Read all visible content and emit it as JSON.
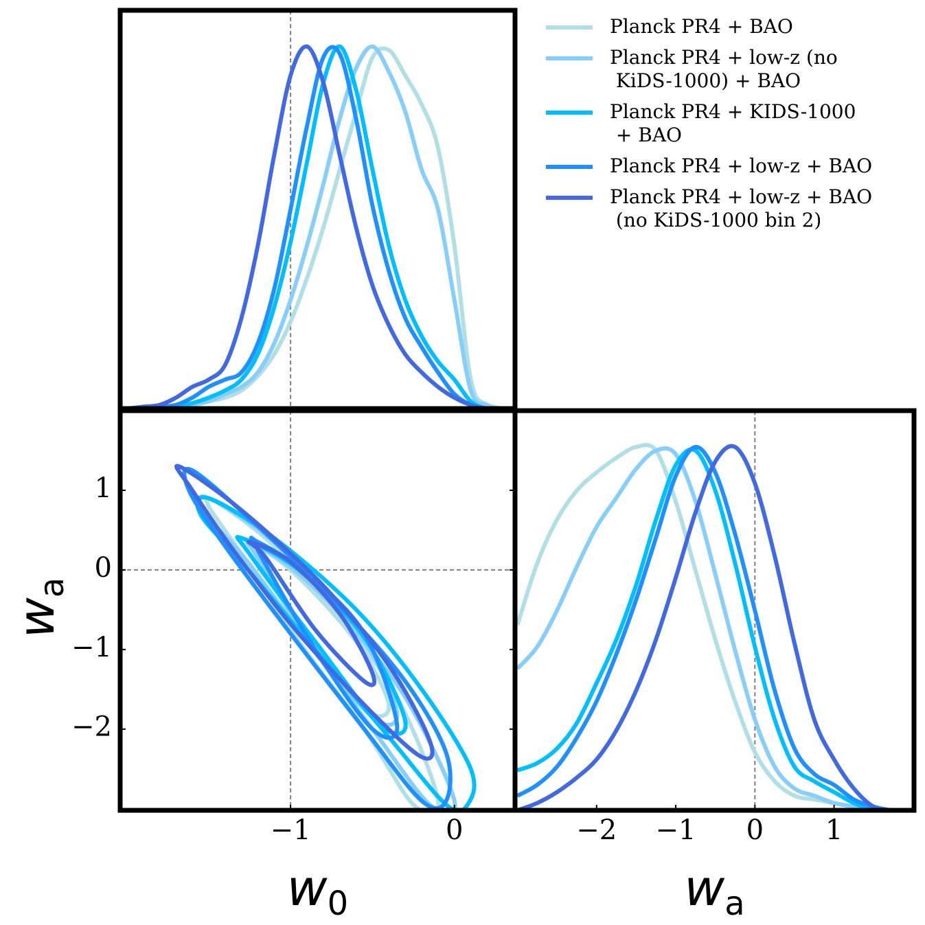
{
  "chart_data": [
    {
      "type": "line",
      "xlim": [
        -2.04,
        0.37
      ],
      "ylim": [
        0,
        1.1
      ],
      "xref": -1,
      "x": [
        -2.0,
        -1.9,
        -1.8,
        -1.7,
        -1.6,
        -1.5,
        -1.4,
        -1.3,
        -1.2,
        -1.1,
        -1.0,
        -0.9,
        -0.8,
        -0.7,
        -0.6,
        -0.5,
        -0.4,
        -0.3,
        -0.2,
        -0.1,
        0.0,
        0.1,
        0.2,
        0.3
      ],
      "series": [
        {
          "name": "Planck PR4 + BAO",
          "color": "#b0e0e6",
          "values": [
            0,
            0,
            0,
            0.005,
            0.01,
            0.02,
            0.03,
            0.05,
            0.09,
            0.15,
            0.24,
            0.36,
            0.5,
            0.66,
            0.82,
            0.97,
            0.99,
            0.92,
            0.84,
            0.72,
            0.45,
            0.08,
            0.01,
            0
          ]
        },
        {
          "name": "Planck PR4 + low-z (no\n KiDS-1000) + BAO",
          "color": "#87cefa",
          "values": [
            0,
            0,
            0,
            0.005,
            0.01,
            0.02,
            0.04,
            0.06,
            0.1,
            0.18,
            0.3,
            0.45,
            0.62,
            0.8,
            0.94,
            1.0,
            0.93,
            0.82,
            0.66,
            0.55,
            0.3,
            0.05,
            0.01,
            0
          ]
        },
        {
          "name": "Planck PR4 + KIDS-1000\n + BAO",
          "color": "#00bfff",
          "values": [
            0,
            0,
            0,
            0.005,
            0.015,
            0.03,
            0.05,
            0.08,
            0.15,
            0.28,
            0.46,
            0.68,
            0.9,
            1.0,
            0.88,
            0.66,
            0.45,
            0.3,
            0.2,
            0.13,
            0.08,
            0.02,
            0,
            0
          ]
        },
        {
          "name": "Planck PR4 + low-z + BAO",
          "color": "#1e90ff",
          "values": [
            0,
            0,
            0.005,
            0.01,
            0.03,
            0.06,
            0.08,
            0.1,
            0.18,
            0.33,
            0.55,
            0.78,
            0.97,
            0.98,
            0.8,
            0.56,
            0.38,
            0.25,
            0.17,
            0.1,
            0.04,
            0.01,
            0,
            0
          ]
        },
        {
          "name": "Planck PR4 + low-z + BAO\n (no KiDS-1000 bin 2)",
          "color": "#4169e1",
          "values": [
            0,
            0.005,
            0.01,
            0.03,
            0.06,
            0.08,
            0.12,
            0.25,
            0.45,
            0.7,
            0.92,
            1.0,
            0.9,
            0.7,
            0.5,
            0.34,
            0.23,
            0.15,
            0.1,
            0.06,
            0.03,
            0.01,
            0,
            0
          ]
        }
      ]
    },
    {
      "type": "contour",
      "xlim": [
        -2.04,
        0.37
      ],
      "ylim": [
        -3.02,
        2.0
      ],
      "xref": -1,
      "yref": 0,
      "xticks": [
        {
          "value": -1,
          "label": "−1"
        },
        0
      ],
      "yticks": [
        1,
        0,
        {
          "value": -1,
          "label": "−1"
        },
        {
          "value": -2,
          "label": "−2"
        }
      ],
      "xlabel": "w",
      "xlabel_sub": "0",
      "ylabel": "w",
      "ylabel_sub": "a",
      "series": [
        {
          "color": "#b0e0e6",
          "contours": [
            {
              "x": [
                -1.45,
                -1.1,
                -0.7,
                -0.35,
                -0.1,
                -0.25,
                -0.55,
                -0.95,
                -1.3,
                -1.5
              ],
              "y": [
                0.85,
                0.3,
                -0.6,
                -1.6,
                -2.9,
                -2.95,
                -2.0,
                -0.9,
                0.2,
                0.8
              ]
            },
            {
              "x": [
                -1.3,
                -1.0,
                -0.6,
                -0.4,
                -0.55,
                -0.9,
                -1.25
              ],
              "y": [
                0.4,
                0.0,
                -0.9,
                -1.7,
                -1.75,
                -0.8,
                0.2
              ]
            }
          ]
        },
        {
          "color": "#87cefa",
          "contours": [
            {
              "x": [
                -1.5,
                -1.1,
                -0.7,
                -0.3,
                0.0,
                -0.15,
                -0.5,
                -0.9,
                -1.3,
                -1.55
              ],
              "y": [
                0.9,
                0.35,
                -0.55,
                -1.6,
                -2.9,
                -2.95,
                -2.0,
                -0.9,
                0.2,
                0.75
              ]
            },
            {
              "x": [
                -1.25,
                -0.95,
                -0.55,
                -0.35,
                -0.5,
                -0.9,
                -1.2
              ],
              "y": [
                0.35,
                -0.05,
                -0.9,
                -1.8,
                -1.85,
                -0.85,
                0.15
              ]
            }
          ]
        },
        {
          "color": "#00bfff",
          "contours": [
            {
              "x": [
                -1.5,
                -1.1,
                -0.6,
                -0.2,
                0.1,
                0.08,
                -0.05,
                -0.4,
                -0.85,
                -1.3,
                -1.55
              ],
              "y": [
                0.9,
                0.4,
                -0.5,
                -1.5,
                -2.5,
                -2.95,
                -2.95,
                -2.1,
                -1.0,
                0.1,
                0.7
              ]
            },
            {
              "x": [
                -1.3,
                -0.95,
                -0.55,
                -0.3,
                -0.45,
                -0.85,
                -1.25
              ],
              "y": [
                0.4,
                0.0,
                -0.85,
                -1.9,
                -1.95,
                -0.9,
                0.2
              ]
            }
          ]
        },
        {
          "color": "#1e90ff",
          "contours": [
            {
              "x": [
                -1.6,
                -1.2,
                -0.7,
                -0.3,
                -0.05,
                -0.05,
                -0.2,
                -0.55,
                -1.0,
                -1.4,
                -1.62
              ],
              "y": [
                1.25,
                0.55,
                -0.45,
                -1.4,
                -2.3,
                -2.9,
                -2.9,
                -2.0,
                -0.8,
                0.3,
                1.0
              ]
            },
            {
              "x": [
                -1.2,
                -0.9,
                -0.55,
                -0.35,
                -0.5,
                -0.85,
                -1.2
              ],
              "y": [
                0.35,
                -0.05,
                -0.8,
                -1.95,
                -2.0,
                -1.0,
                0.25
              ]
            }
          ]
        },
        {
          "color": "#4169e1",
          "contours": [
            {
              "x": [
                -1.68,
                -1.3,
                -0.8,
                -0.4,
                -0.15,
                -0.2,
                -0.5,
                -0.95,
                -1.35,
                -1.6
              ],
              "y": [
                1.3,
                0.75,
                -0.2,
                -1.2,
                -2.15,
                -2.35,
                -1.8,
                -0.8,
                0.25,
                1.0
              ]
            },
            {
              "x": [
                -1.25,
                -1.0,
                -0.7,
                -0.5,
                -0.55,
                -0.85,
                -1.15
              ],
              "y": [
                0.35,
                0.1,
                -0.55,
                -1.3,
                -1.4,
                -0.75,
                0.15
              ]
            }
          ]
        }
      ]
    },
    {
      "type": "line",
      "xlim": [
        -3.03,
        2.01
      ],
      "ylim": [
        0,
        1.1
      ],
      "xref": 0,
      "xticks": [
        {
          "value": -2,
          "label": "−2"
        },
        {
          "value": -1,
          "label": "−1"
        },
        0,
        1
      ],
      "xlabel": "w",
      "xlabel_sub": "a",
      "x": [
        -3.0,
        -2.75,
        -2.5,
        -2.25,
        -2.0,
        -1.75,
        -1.5,
        -1.25,
        -1.0,
        -0.75,
        -0.5,
        -0.25,
        0.0,
        0.25,
        0.5,
        0.75,
        1.0,
        1.25,
        1.5,
        1.75,
        2.0
      ],
      "series": [
        {
          "color": "#b0e0e6",
          "values": [
            0.51,
            0.68,
            0.8,
            0.88,
            0.93,
            0.97,
            1.0,
            0.99,
            0.85,
            0.66,
            0.47,
            0.3,
            0.16,
            0.08,
            0.04,
            0.03,
            0.02,
            0.01,
            0,
            0,
            0
          ]
        },
        {
          "color": "#87cefa",
          "values": [
            0.39,
            0.45,
            0.55,
            0.67,
            0.78,
            0.86,
            0.94,
            0.99,
            0.98,
            0.85,
            0.65,
            0.44,
            0.25,
            0.12,
            0.06,
            0.04,
            0.02,
            0.01,
            0,
            0,
            0
          ]
        },
        {
          "color": "#00bfff",
          "values": [
            0.11,
            0.13,
            0.17,
            0.24,
            0.35,
            0.47,
            0.62,
            0.8,
            0.95,
            0.99,
            0.88,
            0.68,
            0.45,
            0.25,
            0.12,
            0.08,
            0.05,
            0.02,
            0,
            0,
            0
          ]
        },
        {
          "color": "#1e90ff",
          "values": [
            0.04,
            0.07,
            0.12,
            0.2,
            0.3,
            0.43,
            0.58,
            0.75,
            0.92,
            1.0,
            0.93,
            0.76,
            0.55,
            0.33,
            0.17,
            0.1,
            0.07,
            0.03,
            0.01,
            0,
            0
          ]
        },
        {
          "color": "#4169e1",
          "values": [
            0,
            0.02,
            0.05,
            0.09,
            0.14,
            0.22,
            0.33,
            0.47,
            0.64,
            0.82,
            0.96,
            1.0,
            0.9,
            0.7,
            0.46,
            0.25,
            0.14,
            0.06,
            0.01,
            0,
            0
          ]
        }
      ]
    }
  ]
}
